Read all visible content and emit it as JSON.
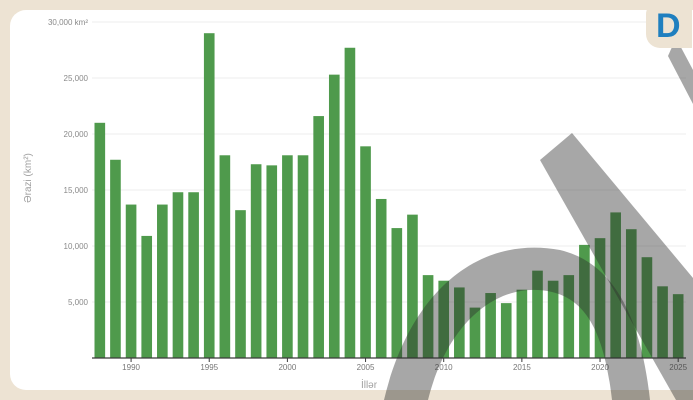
{
  "badge": {
    "letter": "D",
    "color": "#1f7fbf"
  },
  "chart_data": {
    "type": "bar",
    "title": "",
    "xlabel": "İllər",
    "ylabel": "Ərazi (km²)",
    "y_unit_label": "30,000 km²",
    "ylim": [
      0,
      30000
    ],
    "yticks": [
      5000,
      10000,
      15000,
      20000,
      25000,
      30000
    ],
    "ytick_labels": [
      "5,000",
      "10,000",
      "15,000",
      "20,000",
      "25,000",
      "30,000 km²"
    ],
    "xticks": [
      1990,
      1995,
      2000,
      2005,
      2010,
      2015,
      2020,
      2025
    ],
    "grid": true,
    "bar_color": "#4f9a4c",
    "categories": [
      1988,
      1989,
      1990,
      1991,
      1992,
      1993,
      1994,
      1995,
      1996,
      1997,
      1998,
      1999,
      2000,
      2001,
      2002,
      2003,
      2004,
      2005,
      2006,
      2007,
      2008,
      2009,
      2010,
      2011,
      2012,
      2013,
      2014,
      2015,
      2016,
      2017,
      2018,
      2019,
      2020,
      2021,
      2022,
      2023,
      2024,
      2025
    ],
    "values": [
      21000,
      17700,
      13700,
      10900,
      13700,
      14800,
      14800,
      29000,
      18100,
      13200,
      17300,
      17200,
      18100,
      18100,
      21600,
      25300,
      27700,
      18900,
      14200,
      11600,
      12800,
      7400,
      6900,
      6300,
      4500,
      5800,
      4900,
      6100,
      7800,
      6900,
      7400,
      10100,
      10700,
      13000,
      11500,
      9000,
      6400,
      5700
    ]
  }
}
